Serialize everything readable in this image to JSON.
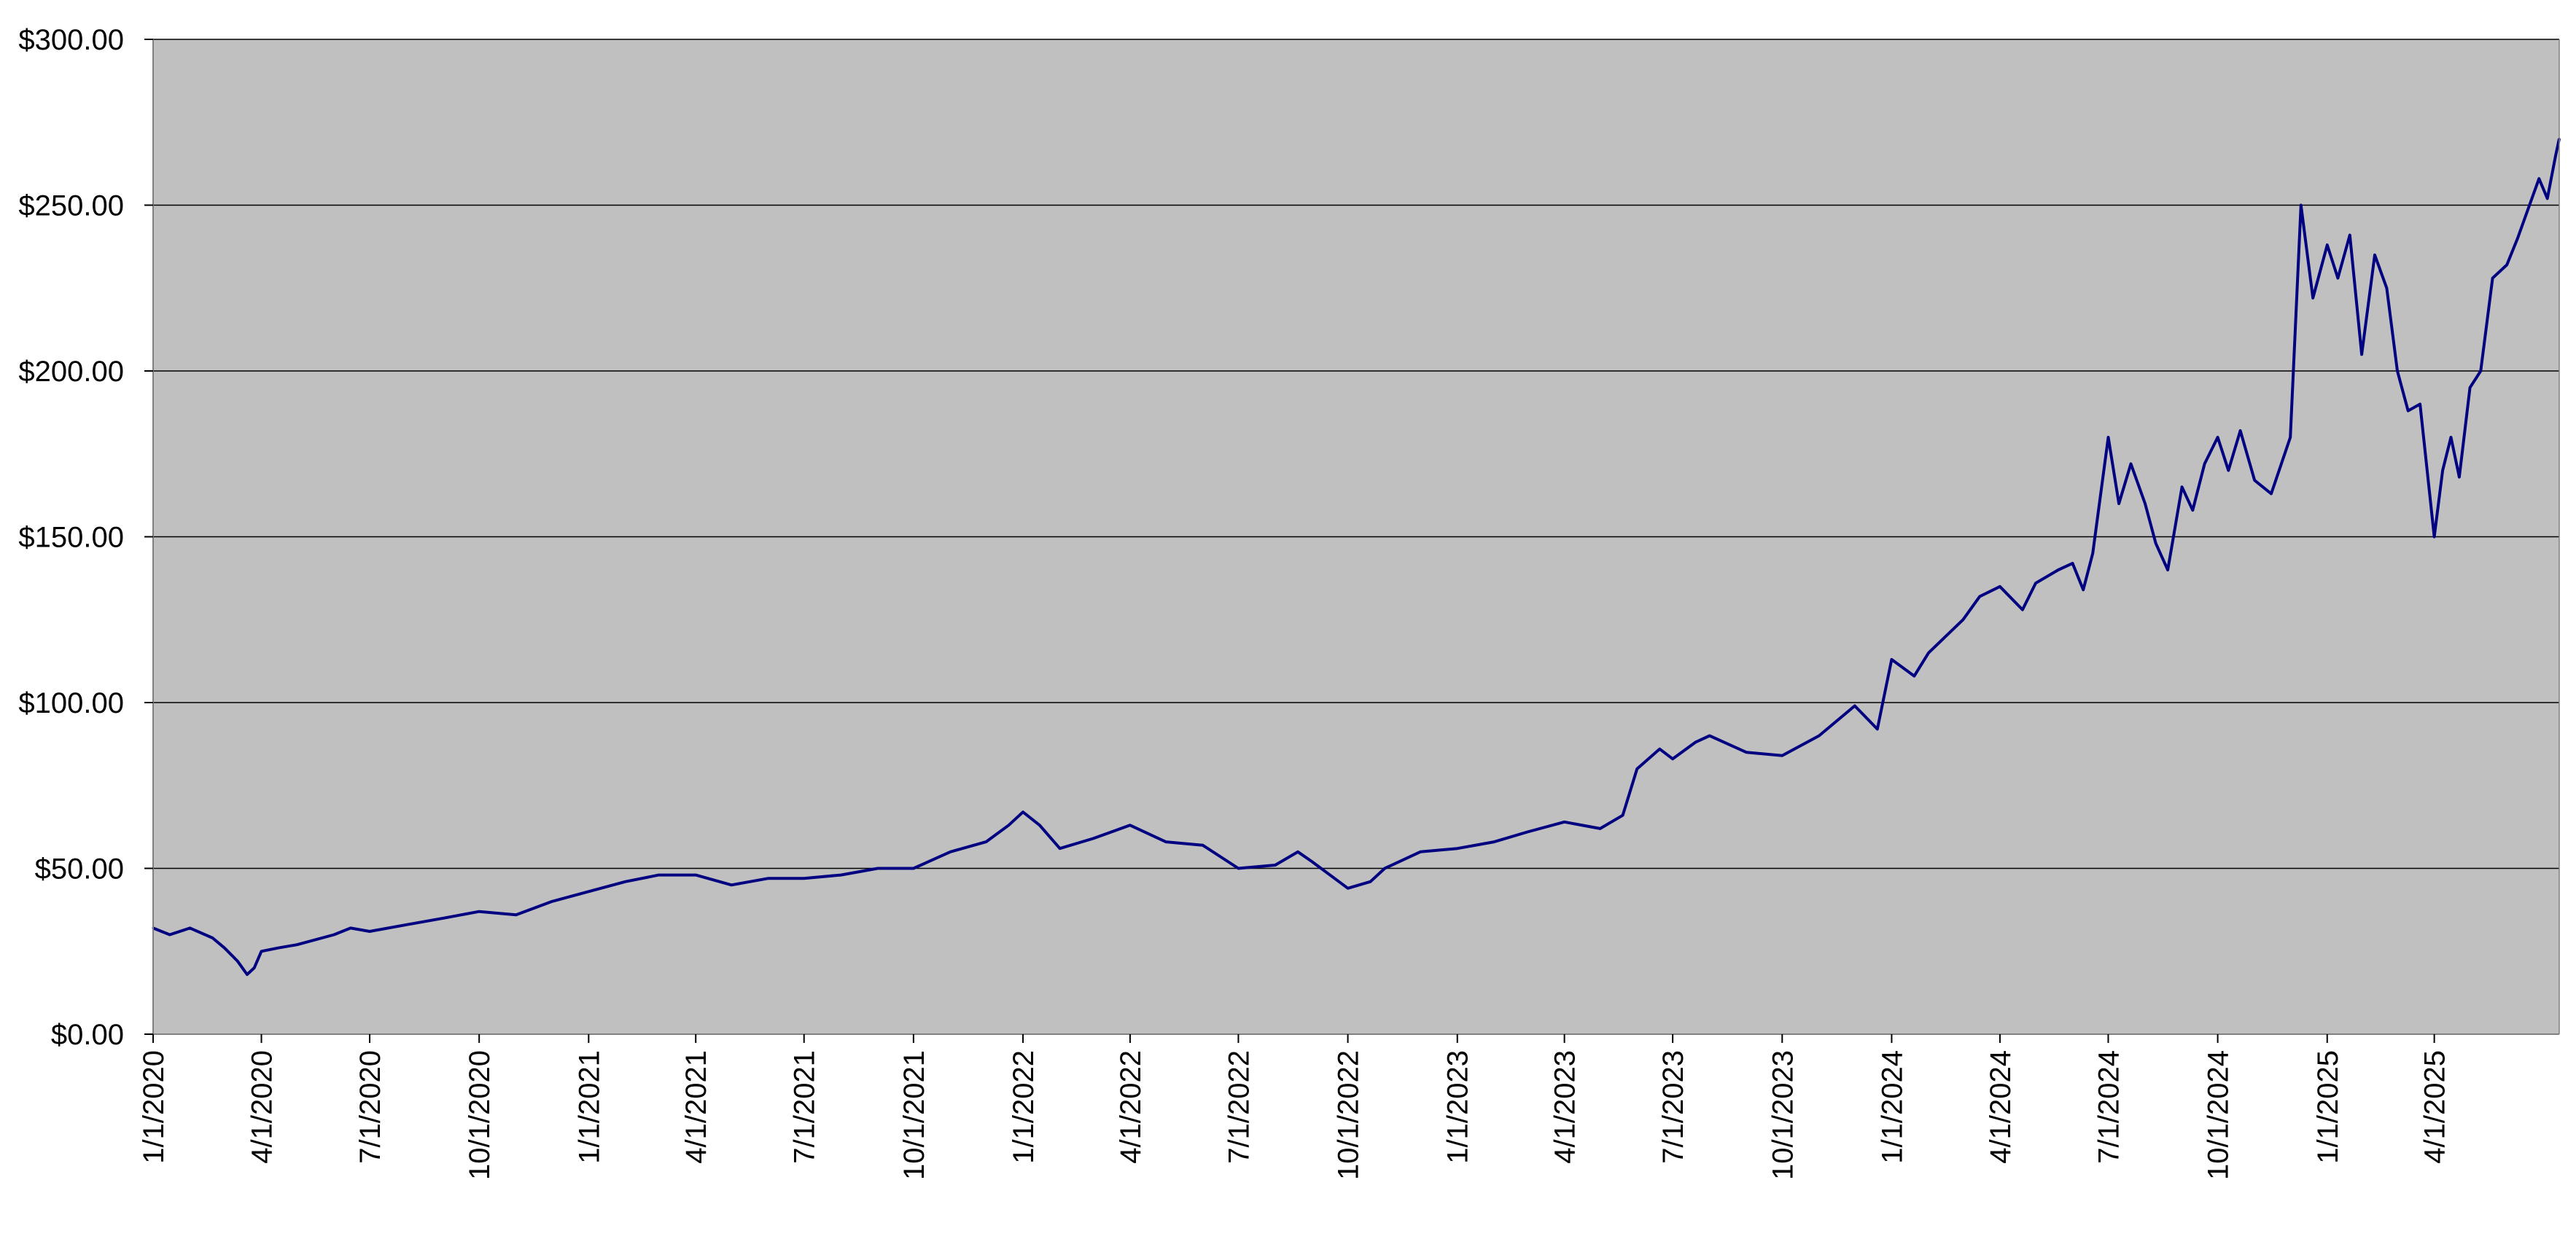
{
  "chart_data": {
    "type": "line",
    "title": "",
    "xlabel": "",
    "ylabel": "",
    "x_range": [
      "2020-01-01",
      "2025-07-15"
    ],
    "ylim": [
      0,
      300
    ],
    "grid": true,
    "legend": "none",
    "colors": {
      "plot_background": "#c0c0c0",
      "line": "#000080",
      "gridline": "#000000"
    },
    "y_tick_values": [
      0,
      50,
      100,
      150,
      200,
      250,
      300
    ],
    "y_tick_labels": [
      "$0.00",
      "$50.00",
      "$100.00",
      "$150.00",
      "$200.00",
      "$250.00",
      "$300.00"
    ],
    "x_tick_values": [
      "2020-01-01",
      "2020-04-01",
      "2020-07-01",
      "2020-10-01",
      "2021-01-01",
      "2021-04-01",
      "2021-07-01",
      "2021-10-01",
      "2022-01-01",
      "2022-04-01",
      "2022-07-01",
      "2022-10-01",
      "2023-01-01",
      "2023-04-01",
      "2023-07-01",
      "2023-10-01",
      "2024-01-01",
      "2024-04-01",
      "2024-07-01",
      "2024-10-01",
      "2025-01-01",
      "2025-04-01"
    ],
    "x_tick_labels": [
      "1/1/2020",
      "4/1/2020",
      "7/1/2020",
      "10/1/2020",
      "1/1/2021",
      "4/1/2021",
      "7/1/2021",
      "10/1/2021",
      "1/1/2022",
      "4/1/2022",
      "7/1/2022",
      "10/1/2022",
      "1/1/2023",
      "4/1/2023",
      "7/1/2023",
      "10/1/2023",
      "1/1/2024",
      "4/1/2024",
      "7/1/2024",
      "10/1/2024",
      "1/1/2025",
      "4/1/2025"
    ],
    "series": [
      {
        "x": [
          "2020-01-01",
          "2020-01-15",
          "2020-02-01",
          "2020-02-20",
          "2020-03-01",
          "2020-03-12",
          "2020-03-20",
          "2020-03-26",
          "2020-04-01",
          "2020-04-15",
          "2020-05-01",
          "2020-06-01",
          "2020-06-15",
          "2020-07-01",
          "2020-08-01",
          "2020-09-01",
          "2020-10-01",
          "2020-11-01",
          "2020-12-01",
          "2021-01-01",
          "2021-02-01",
          "2021-03-01",
          "2021-04-01",
          "2021-05-01",
          "2021-06-01",
          "2021-07-01",
          "2021-08-01",
          "2021-09-01",
          "2021-10-01",
          "2021-11-01",
          "2021-12-01",
          "2021-12-20",
          "2022-01-01",
          "2022-01-15",
          "2022-02-01",
          "2022-03-01",
          "2022-04-01",
          "2022-05-01",
          "2022-06-01",
          "2022-07-01",
          "2022-08-01",
          "2022-08-20",
          "2022-09-01",
          "2022-10-01",
          "2022-10-20",
          "2022-11-01",
          "2022-12-01",
          "2023-01-01",
          "2023-02-01",
          "2023-03-01",
          "2023-04-01",
          "2023-05-01",
          "2023-05-20",
          "2023-06-01",
          "2023-06-20",
          "2023-07-01",
          "2023-07-20",
          "2023-08-01",
          "2023-09-01",
          "2023-10-01",
          "2023-11-01",
          "2023-12-01",
          "2023-12-20",
          "2024-01-01",
          "2024-01-20",
          "2024-02-01",
          "2024-03-01",
          "2024-03-15",
          "2024-04-01",
          "2024-04-20",
          "2024-05-01",
          "2024-05-20",
          "2024-06-01",
          "2024-06-10",
          "2024-06-18",
          "2024-07-01",
          "2024-07-10",
          "2024-07-20",
          "2024-08-01",
          "2024-08-10",
          "2024-08-20",
          "2024-09-01",
          "2024-09-10",
          "2024-09-20",
          "2024-10-01",
          "2024-10-10",
          "2024-10-20",
          "2024-11-01",
          "2024-11-15",
          "2024-12-01",
          "2024-12-10",
          "2024-12-20",
          "2025-01-01",
          "2025-01-10",
          "2025-01-20",
          "2025-01-30",
          "2025-02-10",
          "2025-02-20",
          "2025-03-01",
          "2025-03-10",
          "2025-03-20",
          "2025-04-01",
          "2025-04-08",
          "2025-04-15",
          "2025-04-22",
          "2025-05-01",
          "2025-05-10",
          "2025-05-20",
          "2025-06-01",
          "2025-06-10",
          "2025-06-20",
          "2025-06-28",
          "2025-07-05",
          "2025-07-12",
          "2025-07-15"
        ],
        "y": [
          32,
          30,
          32,
          29,
          26,
          22,
          18,
          20,
          25,
          26,
          27,
          30,
          32,
          31,
          33,
          35,
          37,
          36,
          40,
          43,
          46,
          48,
          48,
          45,
          47,
          47,
          48,
          50,
          50,
          55,
          58,
          63,
          67,
          63,
          56,
          59,
          63,
          58,
          57,
          50,
          51,
          55,
          52,
          44,
          46,
          50,
          55,
          56,
          58,
          61,
          64,
          62,
          66,
          80,
          86,
          83,
          88,
          90,
          85,
          84,
          90,
          99,
          92,
          113,
          108,
          115,
          125,
          132,
          135,
          128,
          136,
          140,
          142,
          134,
          145,
          180,
          160,
          172,
          160,
          148,
          140,
          165,
          158,
          172,
          180,
          170,
          182,
          167,
          163,
          180,
          250,
          222,
          238,
          228,
          241,
          205,
          235,
          225,
          200,
          188,
          190,
          150,
          170,
          180,
          168,
          195,
          200,
          228,
          232,
          240,
          250,
          258,
          252,
          265,
          270
        ]
      }
    ]
  }
}
